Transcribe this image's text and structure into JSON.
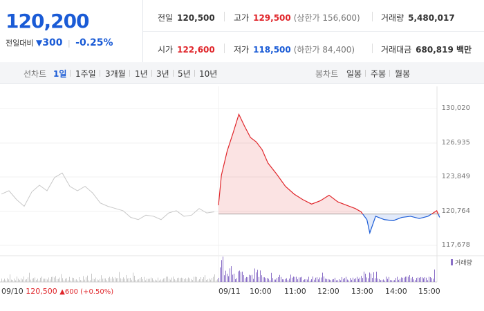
{
  "quote": {
    "price": "120,200",
    "change_label": "전일대비",
    "change_arrow": "▼",
    "change_amount": "300",
    "change_pct": "-0.25%"
  },
  "stats": {
    "prev_close": {
      "label": "전일",
      "value": "120,500"
    },
    "high": {
      "label": "고가",
      "value": "129,500",
      "sub": "(상한가 156,600)"
    },
    "volume": {
      "label": "거래량",
      "value": "5,480,017"
    },
    "open": {
      "label": "시가",
      "value": "122,600"
    },
    "low": {
      "label": "저가",
      "value": "118,500",
      "sub": "(하한가 84,400)"
    },
    "amount": {
      "label": "거래대금",
      "value": "680,819 백만"
    }
  },
  "line_tabs": {
    "label": "선차트",
    "items": [
      "1일",
      "1주일",
      "3개월",
      "1년",
      "3년",
      "5년",
      "10년"
    ],
    "active": "1일"
  },
  "candle_tabs": {
    "label": "봉차트",
    "items": [
      "일봉",
      "주봉",
      "월봉"
    ]
  },
  "colors": {
    "up": "#e0252a",
    "down": "#1a5bd6",
    "prev_line": "#c8c8c8",
    "volume": "#8a6fc7"
  },
  "chart_data": {
    "type": "line",
    "y_ticks": [
      "130,020",
      "126,935",
      "123,849",
      "120,764",
      "117,678"
    ],
    "ylim": [
      117678,
      130020
    ],
    "reference_price": 120500,
    "x_ticks": [
      "09/11",
      "10:00",
      "11:00",
      "12:00",
      "13:00",
      "14:00",
      "15:00"
    ],
    "prev_day_label": "09/10",
    "prev_day_close": "120,500",
    "prev_day_change": "▲600 (+0.50%)",
    "volume_legend": "거래량",
    "today_series": {
      "times": [
        "09:00",
        "09:05",
        "09:15",
        "09:25",
        "09:35",
        "09:45",
        "09:55",
        "10:05",
        "10:15",
        "10:25",
        "10:40",
        "10:55",
        "11:10",
        "11:25",
        "11:40",
        "11:55",
        "12:10",
        "12:25",
        "12:40",
        "12:55",
        "13:05",
        "13:15",
        "13:20",
        "13:30",
        "13:45",
        "14:00",
        "14:15",
        "14:30",
        "14:45",
        "15:00",
        "15:15",
        "15:20"
      ],
      "values": [
        121300,
        124000,
        126200,
        127800,
        129500,
        128400,
        127400,
        127000,
        126300,
        125100,
        124100,
        123000,
        122300,
        121800,
        121400,
        121700,
        122200,
        121600,
        121300,
        121000,
        120700,
        120000,
        118800,
        120300,
        120000,
        119900,
        120200,
        120300,
        120100,
        120300,
        120800,
        120200
      ]
    },
    "prev_series": {
      "values": [
        122300,
        122600,
        121800,
        121200,
        122500,
        123100,
        122600,
        123800,
        124200,
        123000,
        122600,
        123000,
        122400,
        121500,
        121200,
        121000,
        120800,
        120200,
        120000,
        120400,
        120300,
        120000,
        120600,
        120800,
        120300,
        120400,
        121000,
        120600,
        120700
      ]
    }
  }
}
